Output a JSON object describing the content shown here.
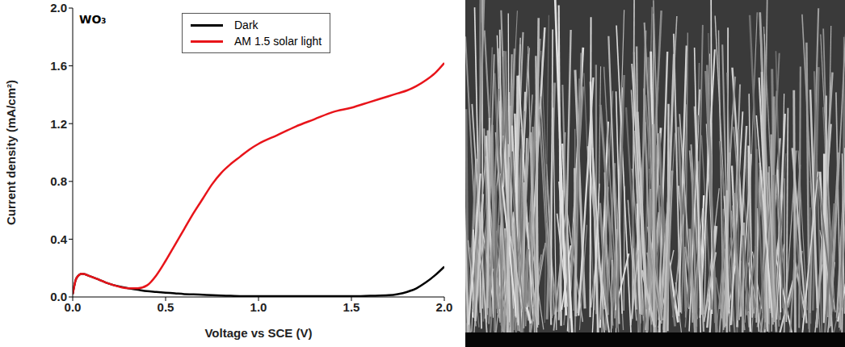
{
  "chart_data": {
    "type": "line",
    "title": "WO₃",
    "x_label": "Voltage vs SCE (V)",
    "y_label": "Current density (mA/cm²)",
    "x": [
      0,
      0.02,
      0.05,
      0.1,
      0.2,
      0.3,
      0.35,
      0.4,
      0.45,
      0.5,
      0.55,
      0.6,
      0.65,
      0.7,
      0.75,
      0.8,
      0.85,
      0.9,
      0.95,
      1.0,
      1.1,
      1.2,
      1.3,
      1.4,
      1.5,
      1.6,
      1.7,
      1.75,
      1.8,
      1.85,
      1.9,
      1.95,
      2.0
    ],
    "series": [
      {
        "name": "Dark",
        "color": "#000000",
        "values": [
          0.02,
          0.13,
          0.16,
          0.14,
          0.09,
          0.06,
          0.05,
          0.04,
          0.035,
          0.03,
          0.025,
          0.02,
          0.018,
          0.015,
          0.012,
          0.01,
          0.008,
          0.006,
          0.005,
          0.005,
          0.005,
          0.005,
          0.005,
          0.005,
          0.005,
          0.008,
          0.012,
          0.02,
          0.035,
          0.06,
          0.1,
          0.15,
          0.21
        ]
      },
      {
        "name": "AM 1.5 solar light",
        "color": "#e8141a",
        "values": [
          0.02,
          0.13,
          0.16,
          0.14,
          0.09,
          0.06,
          0.06,
          0.08,
          0.15,
          0.25,
          0.36,
          0.47,
          0.58,
          0.68,
          0.78,
          0.86,
          0.92,
          0.97,
          1.02,
          1.06,
          1.12,
          1.18,
          1.23,
          1.28,
          1.31,
          1.35,
          1.39,
          1.41,
          1.43,
          1.46,
          1.5,
          1.55,
          1.62
        ]
      }
    ],
    "xlim": [
      0,
      2
    ],
    "xticks": [
      {
        "value": 0,
        "label": "0.0"
      },
      {
        "value": 0.5,
        "label": "0.5"
      },
      {
        "value": 1,
        "label": "1.0"
      },
      {
        "value": 1.5,
        "label": "1.5"
      },
      {
        "value": 2,
        "label": "2.0"
      }
    ],
    "ylim": [
      0,
      2
    ],
    "yticks": [
      {
        "value": 0,
        "label": "0.0"
      },
      {
        "value": 0.4,
        "label": "0.4"
      },
      {
        "value": 0.8,
        "label": "0.8"
      },
      {
        "value": 1.2,
        "label": "1.2"
      },
      {
        "value": 1.6,
        "label": "1.6"
      },
      {
        "value": 2,
        "label": "2.0"
      }
    ],
    "legend": "top",
    "grid": false
  }
}
